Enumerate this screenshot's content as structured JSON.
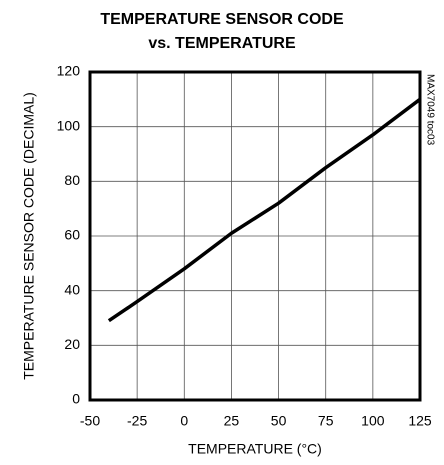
{
  "chart_data": {
    "type": "line",
    "title": [
      "TEMPERATURE SENSOR CODE",
      "vs. TEMPERATURE"
    ],
    "xlabel": "TEMPERATURE (°C)",
    "ylabel": "TEMPERATURE SENSOR CODE (DECIMAL)",
    "annotation": "MAX7049 toc03",
    "x": [
      -40,
      -25,
      0,
      25,
      50,
      75,
      100,
      125
    ],
    "series": [
      {
        "color": "#000000",
        "values": [
          29,
          36,
          48,
          61,
          72,
          85,
          97,
          110
        ]
      }
    ],
    "xlim": [
      -50,
      125
    ],
    "xticks": [
      -50,
      -25,
      0,
      25,
      50,
      75,
      100,
      125
    ],
    "ylim": [
      0,
      120
    ],
    "yticks": [
      0,
      20,
      40,
      60,
      80,
      100,
      120
    ],
    "grid": true
  }
}
